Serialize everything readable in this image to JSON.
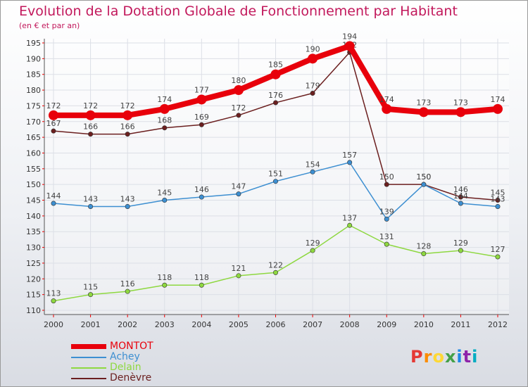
{
  "title": "Evolution de la Dotation Globale de Fonctionnement par Habitant",
  "subtitle": "(en € et par an)",
  "logo": {
    "text": "Proxiti",
    "colors": [
      "#e53935",
      "#fb8c00",
      "#fdd835",
      "#43a047",
      "#1e88e5",
      "#8e24aa",
      "#00acc1"
    ]
  },
  "chart_data": {
    "type": "line",
    "title": "Evolution de la Dotation Globale de Fonctionnement par Habitant",
    "subtitle": "(en € et par an)",
    "x": [
      "2000",
      "2001",
      "2002",
      "2003",
      "2004",
      "2005",
      "2006",
      "2007",
      "2008",
      "2009",
      "2010",
      "2011",
      "2012"
    ],
    "ylim": [
      110,
      195
    ],
    "yticks": [
      110,
      115,
      120,
      125,
      130,
      135,
      140,
      145,
      150,
      155,
      160,
      165,
      170,
      175,
      180,
      185,
      190,
      195
    ],
    "grid": true,
    "legend_position": "bottom-left",
    "series": [
      {
        "name": "MONTOT",
        "color": "#e8000b",
        "values": [
          172,
          172,
          172,
          174,
          177,
          180,
          185,
          190,
          194,
          174,
          173,
          173,
          174
        ]
      },
      {
        "name": "Achey",
        "color": "#3d8fd1",
        "values": [
          144,
          143,
          143,
          145,
          146,
          147,
          151,
          154,
          157,
          139,
          150,
          144,
          143
        ]
      },
      {
        "name": "Delain",
        "color": "#8ed840",
        "values": [
          113,
          115,
          116,
          118,
          118,
          121,
          122,
          129,
          137,
          131,
          128,
          129,
          127
        ]
      },
      {
        "name": "Denèvre",
        "color": "#6b1f1f",
        "values": [
          167,
          166,
          166,
          168,
          169,
          172,
          176,
          179,
          192,
          150,
          150,
          146,
          145
        ]
      }
    ]
  }
}
